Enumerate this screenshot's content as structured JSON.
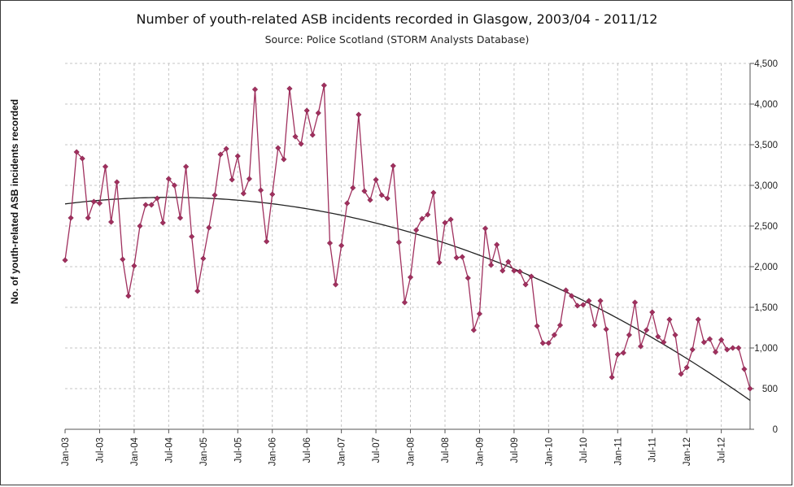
{
  "chart_data": {
    "type": "line",
    "title": "Number of youth-related ASB incidents recorded in Glasgow, 2003/04 - 2011/12",
    "subtitle": "Source: Police Scotland (STORM Analysts Database)",
    "xlabel": "",
    "ylabel": "No. of youth-related ASB incidents recorded",
    "ylim": [
      0,
      4500
    ],
    "yticks": [
      0,
      500,
      1000,
      1500,
      2000,
      2500,
      3000,
      3500,
      4000,
      4500
    ],
    "yticklabels": [
      "0",
      "500",
      "1,000",
      "1,500",
      "2,000",
      "2,500",
      "3,000",
      "3,500",
      "4,000",
      "4,500"
    ],
    "xticklabels": [
      "Jan-03",
      "Jul-03",
      "Jan-04",
      "Jul-04",
      "Jan-05",
      "Jul-05",
      "Jan-06",
      "Jul-06",
      "Jan-07",
      "Jul-07",
      "Jan-08",
      "Jul-08",
      "Jan-09",
      "Jul-09",
      "Jan-10",
      "Jul-10",
      "Jan-11",
      "Jul-11",
      "Jan-12",
      "Jul-12"
    ],
    "grid": true,
    "y_axis_side": "right",
    "x_start": "Jan-03",
    "x_end": "Dec-12",
    "series": [
      {
        "name": "",
        "color": "#a0305e",
        "marker": "diamond",
        "values": [
          2080,
          2600,
          3410,
          3330,
          2600,
          2800,
          2780,
          3230,
          2550,
          3040,
          2090,
          1640,
          2010,
          2500,
          2760,
          2760,
          2840,
          2540,
          3080,
          3000,
          2600,
          3230,
          2370,
          1700,
          2100,
          2480,
          2880,
          3380,
          3450,
          3070,
          3360,
          2900,
          3080,
          4180,
          2940,
          2310,
          2890,
          3460,
          3320,
          4190,
          3600,
          3510,
          3920,
          3620,
          3890,
          4230,
          2290,
          1780,
          2260,
          2780,
          2970,
          3870,
          2930,
          2820,
          3070,
          2880,
          2840,
          3240,
          2300,
          1560,
          1870,
          2450,
          2590,
          2640,
          2910,
          2050,
          2540,
          2580,
          2110,
          2120,
          1860,
          1220,
          1420,
          2470,
          2020,
          2270,
          1950,
          2060,
          1950,
          1940,
          1780,
          1880,
          1270,
          1060,
          1060,
          1160,
          1280,
          1710,
          1640,
          1520,
          1530,
          1580,
          1280,
          1580,
          1230,
          640,
          920,
          940,
          1160,
          1560,
          1020,
          1220,
          1440,
          1140,
          1070,
          1350,
          1160,
          680,
          760,
          980,
          1350,
          1070,
          1110,
          950,
          1100,
          980,
          1000,
          1000,
          740,
          500
        ]
      },
      {
        "name": "",
        "color": "#222222",
        "marker": "none",
        "trend": "quadratic",
        "values": [
          2740,
          2890,
          2410,
          1570,
          380
        ]
      }
    ]
  }
}
